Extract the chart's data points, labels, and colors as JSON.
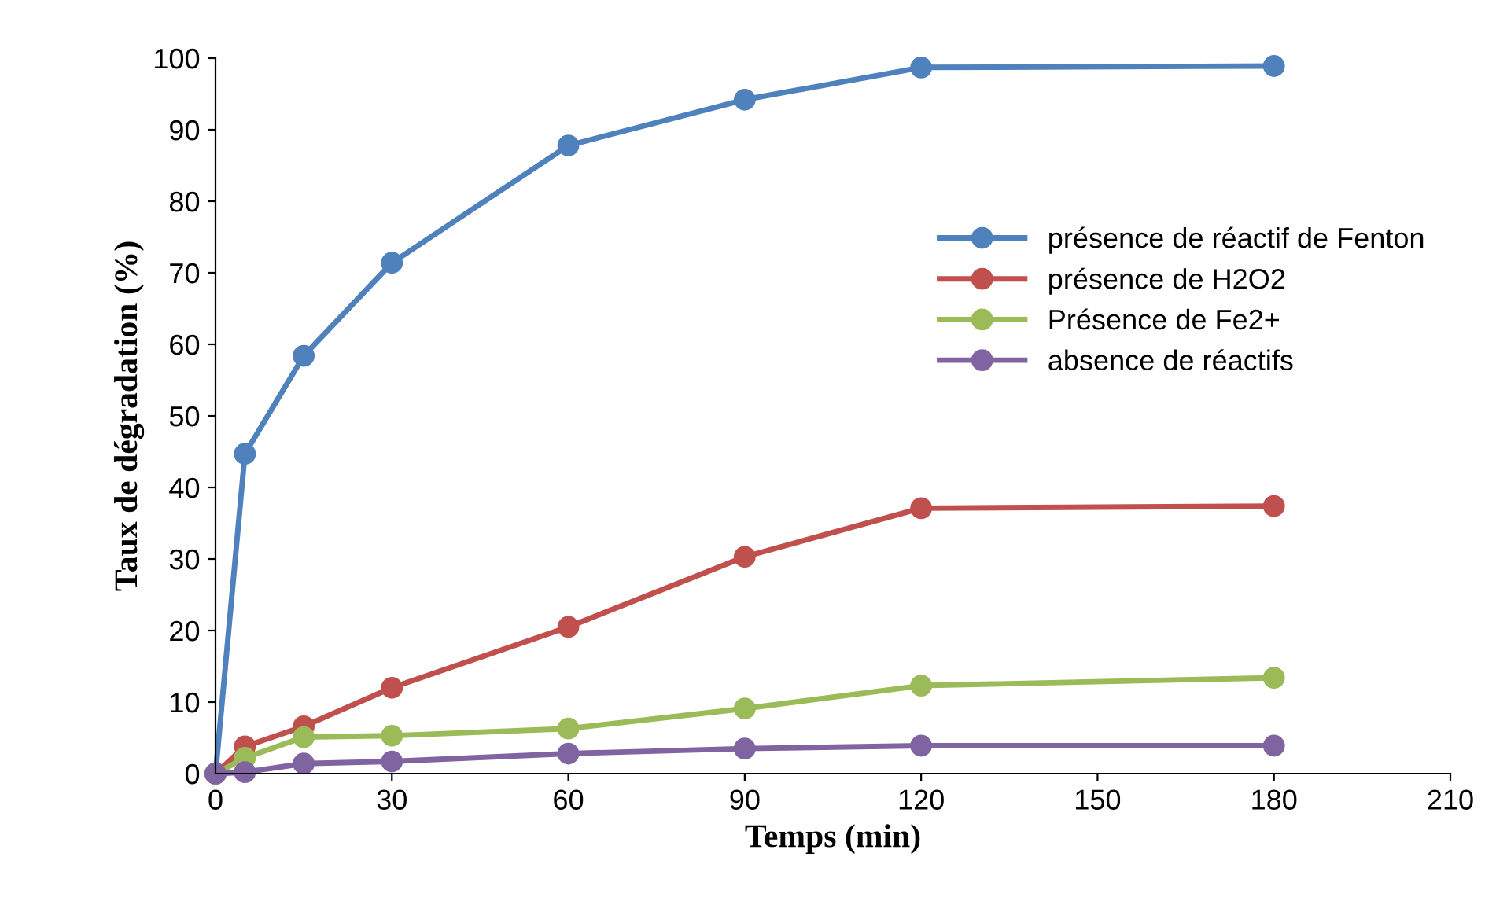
{
  "chart_data": {
    "type": "line",
    "xlabel": "Temps (min)",
    "ylabel": "Taux de dégradation (%)",
    "x": [
      0,
      5,
      15,
      30,
      60,
      90,
      120,
      180
    ],
    "xlim": [
      0,
      210
    ],
    "xticks": [
      0,
      30,
      60,
      90,
      120,
      150,
      180,
      210
    ],
    "ylim": [
      0,
      100
    ],
    "yticks": [
      0,
      10,
      20,
      30,
      40,
      50,
      60,
      70,
      80,
      90,
      100
    ],
    "grid": false,
    "legend": "right",
    "marker": "circle",
    "line_style": "solid",
    "series": [
      {
        "name": "présence de réactif de Fenton",
        "color": "#4f81bd",
        "values": [
          0,
          44.7,
          58.4,
          71.4,
          87.8,
          94.2,
          98.7,
          98.9
        ]
      },
      {
        "name": "présence de H2O2",
        "color": "#c0504d",
        "values": [
          0,
          3.8,
          6.6,
          12.0,
          20.5,
          30.3,
          37.1,
          37.4
        ]
      },
      {
        "name": "Présence de Fe2+",
        "color": "#9bbb59",
        "values": [
          0,
          2.2,
          5.1,
          5.3,
          6.3,
          9.1,
          12.3,
          13.4
        ]
      },
      {
        "name": "absence de réactifs",
        "color": "#8064a2",
        "values": [
          0,
          0.2,
          1.4,
          1.7,
          2.8,
          3.5,
          3.9,
          3.9
        ]
      }
    ]
  }
}
